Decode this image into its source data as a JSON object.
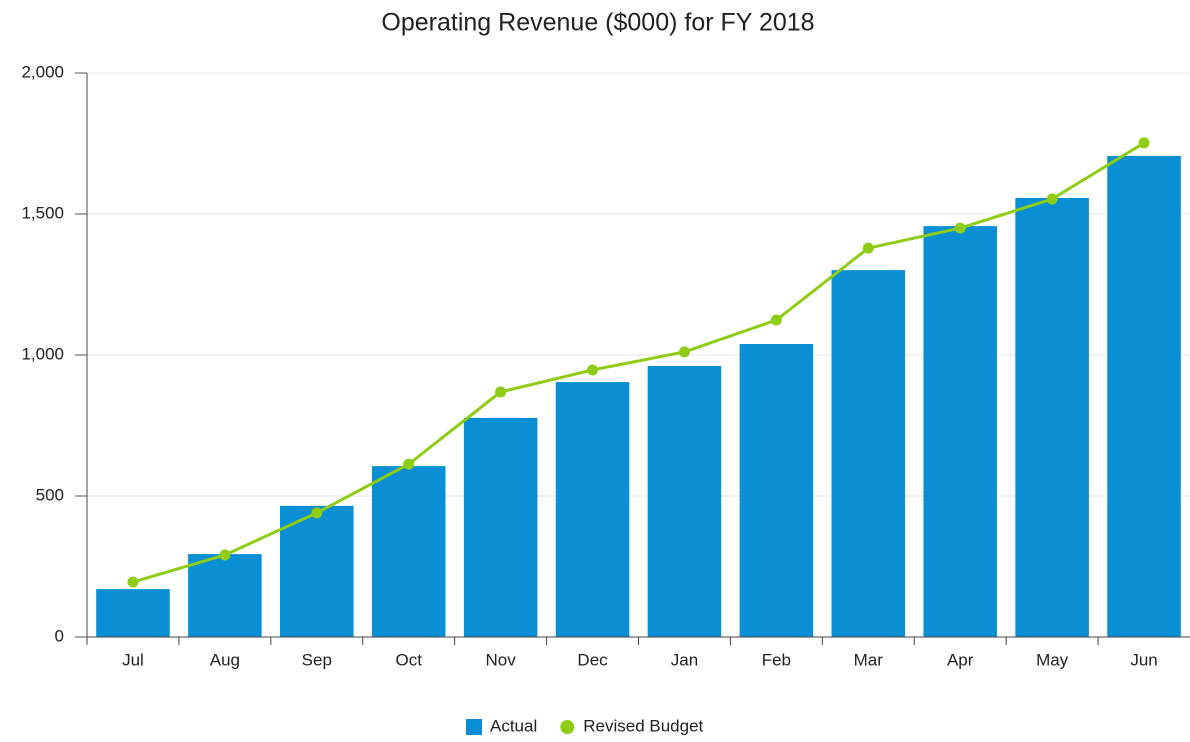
{
  "chart_data": {
    "type": "bar",
    "title": "Operating Revenue ($000) for FY 2018",
    "categories": [
      "Jul",
      "Aug",
      "Sep",
      "Oct",
      "Nov",
      "Dec",
      "Jan",
      "Feb",
      "Mar",
      "Apr",
      "May",
      "Jun"
    ],
    "series": [
      {
        "name": "Actual",
        "type": "bar",
        "color": "#0a8fd4",
        "values": [
          170,
          294,
          465,
          606,
          777,
          904,
          961,
          1039,
          1301,
          1457,
          1557,
          1706
        ]
      },
      {
        "name": "Revised Budget",
        "type": "line",
        "color": "#8fcc14",
        "values": [
          195,
          291,
          440,
          613,
          869,
          947,
          1011,
          1124,
          1379,
          1450,
          1553,
          1752
        ]
      }
    ],
    "ylim": [
      0,
      2000
    ],
    "yticks": [
      0,
      500,
      {
        "value": 1000,
        "label": "1,000"
      },
      {
        "value": 1500,
        "label": "1,500"
      },
      {
        "value": 2000,
        "label": "2,000"
      }
    ],
    "grid": true,
    "legend": "bottom"
  }
}
